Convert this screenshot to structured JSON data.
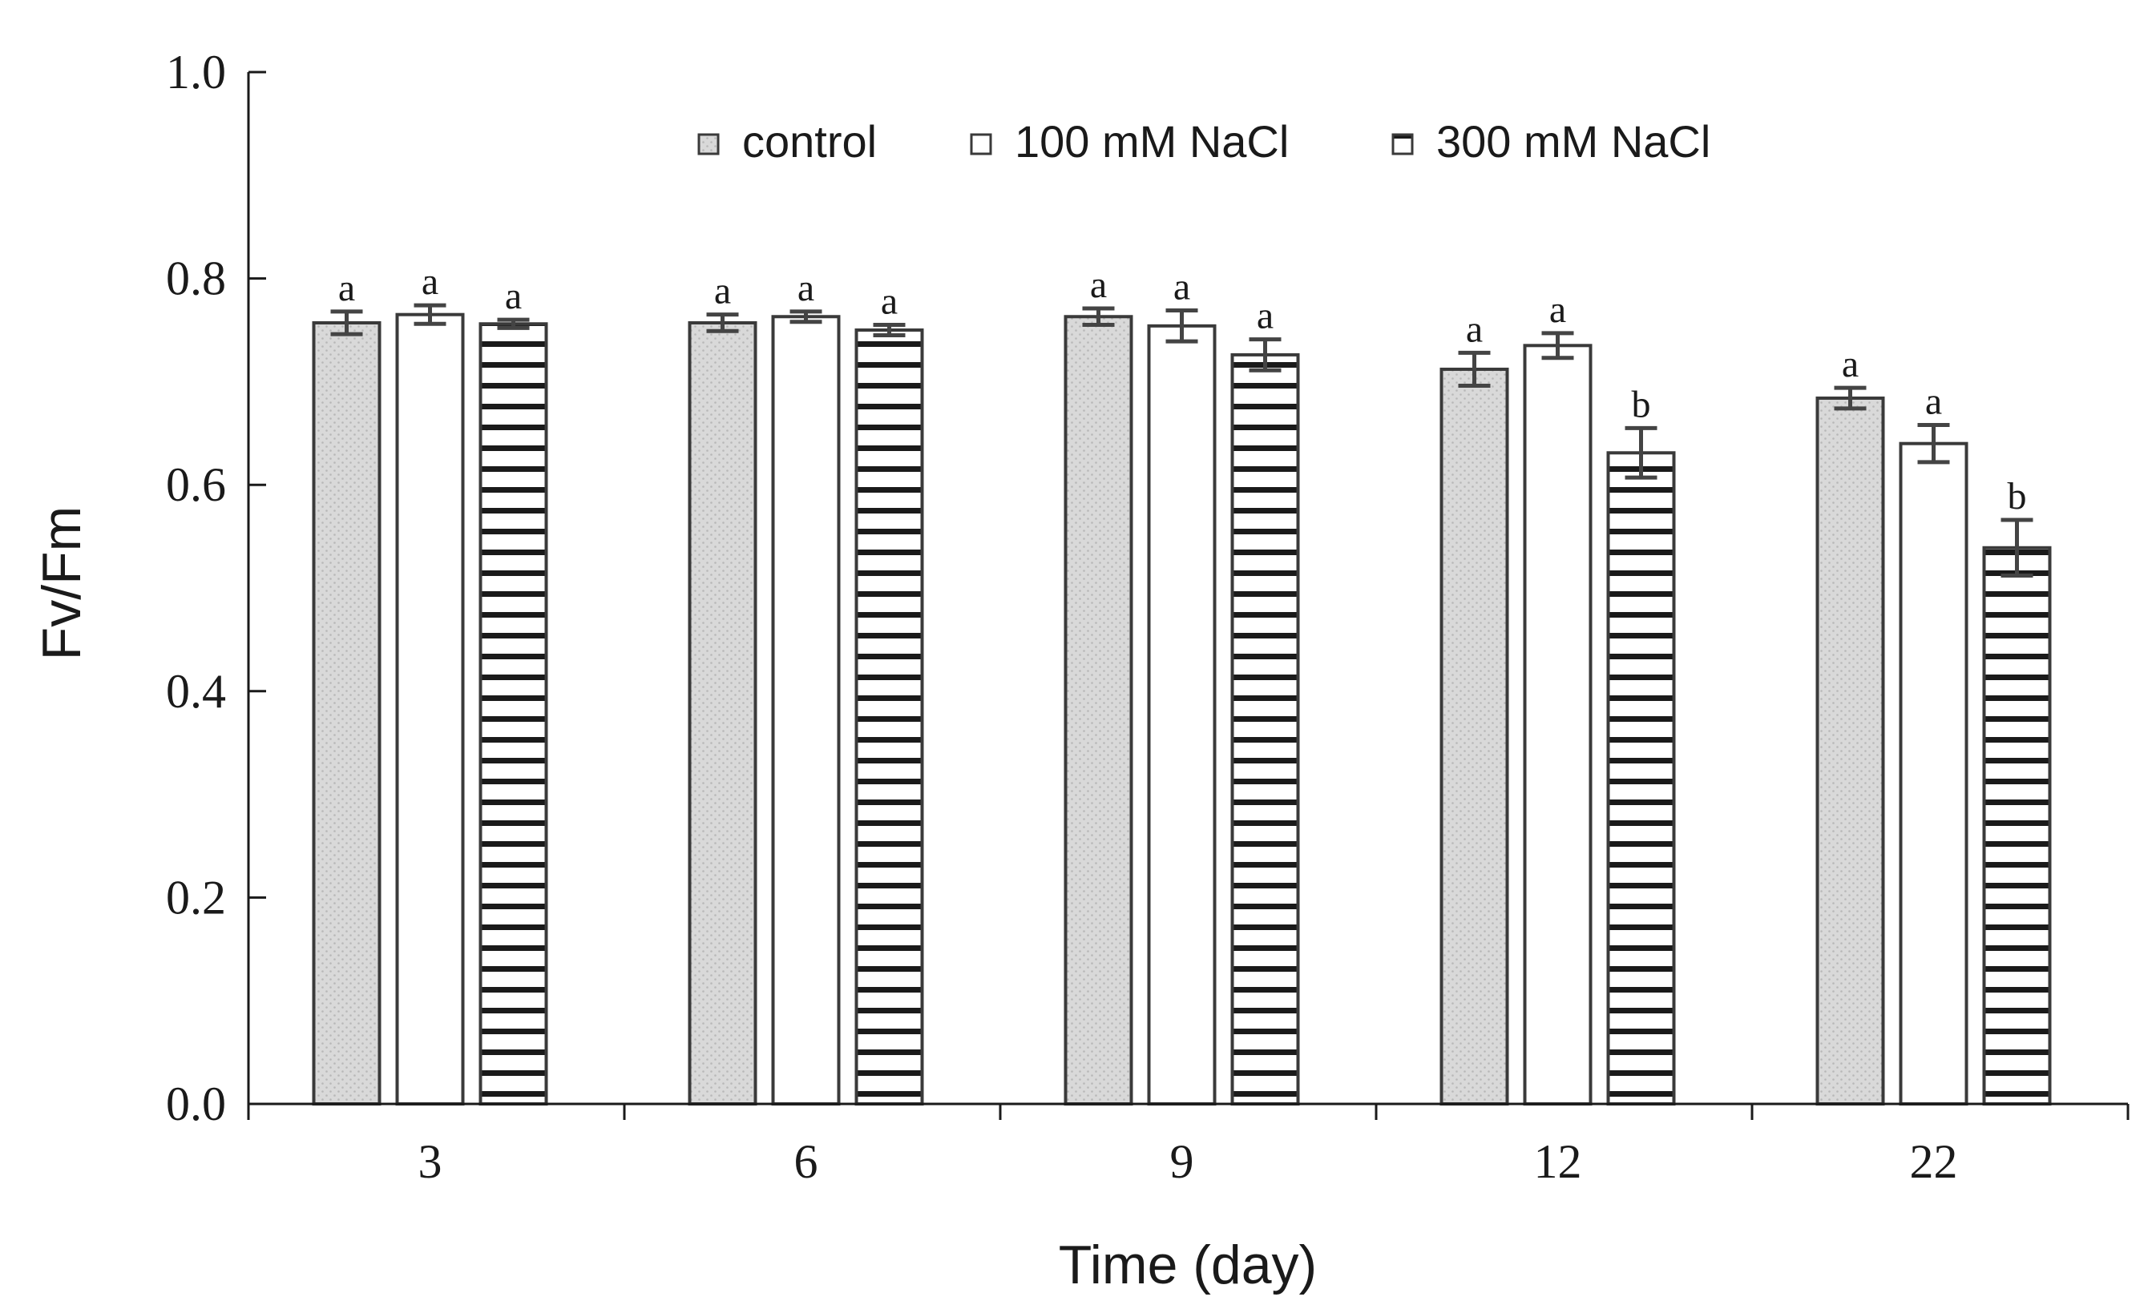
{
  "chart_data": {
    "type": "bar",
    "title": "",
    "xlabel": "Time (day)",
    "ylabel": "Fv/Fm",
    "ylim": [
      0,
      1.0
    ],
    "yticks": [
      "0.0",
      "0.2",
      "0.4",
      "0.6",
      "0.8",
      "1.0"
    ],
    "ytick_values": [
      0,
      0.2,
      0.4,
      0.6,
      0.8,
      1.0
    ],
    "categories": [
      "3",
      "6",
      "9",
      "12",
      "22"
    ],
    "legend_position": "top-center",
    "series": [
      {
        "name": "control",
        "pattern": "dotted-gray",
        "fill": "#d9d9d9",
        "values": [
          0.757,
          0.757,
          0.763,
          0.712,
          0.684
        ],
        "errors": [
          0.011,
          0.008,
          0.008,
          0.016,
          0.01
        ],
        "significance": [
          "a",
          "a",
          "a",
          "a",
          "a"
        ]
      },
      {
        "name": "100 mM NaCl",
        "pattern": "solid-white",
        "fill": "#ffffff",
        "values": [
          0.765,
          0.763,
          0.754,
          0.735,
          0.64
        ],
        "errors": [
          0.009,
          0.005,
          0.015,
          0.012,
          0.018
        ],
        "significance": [
          "a",
          "a",
          "a",
          "a",
          "a"
        ]
      },
      {
        "name": "300 mM NaCl",
        "pattern": "horizontal-stripes",
        "fill": "#ffffff",
        "values": [
          0.756,
          0.75,
          0.726,
          0.631,
          0.539
        ],
        "errors": [
          0.004,
          0.005,
          0.015,
          0.024,
          0.027
        ],
        "significance": [
          "a",
          "a",
          "a",
          "b",
          "b"
        ]
      }
    ]
  },
  "colors": {
    "axis": "#1a1a1a",
    "bar_edge": "#3a3a3a",
    "error_bar": "#444444",
    "stripe": "#1a1a1a",
    "dot_bg": "#d9d9d9",
    "dot": "#b8b8b8"
  }
}
